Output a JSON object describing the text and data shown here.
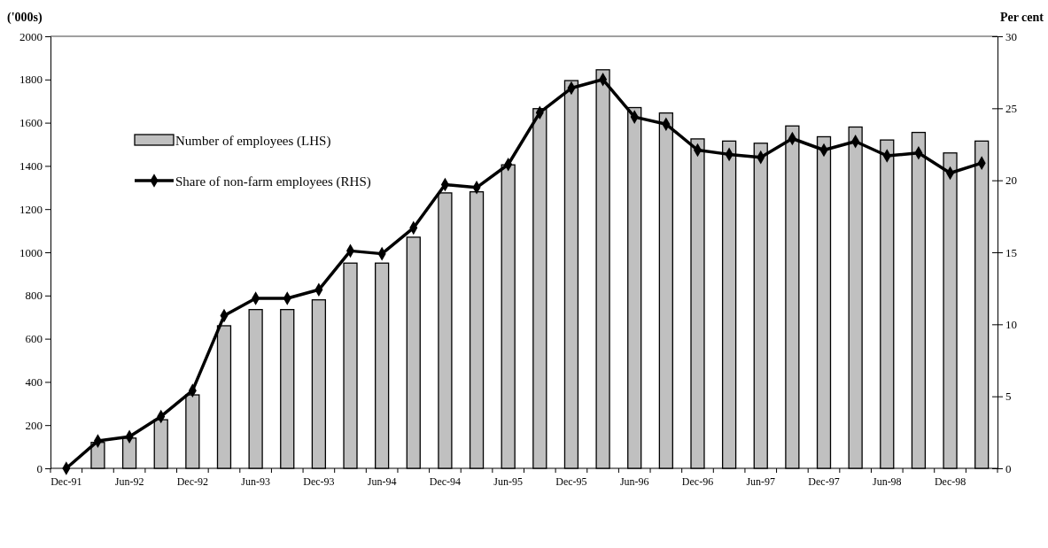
{
  "chart_data": {
    "type": "bar",
    "ylabel": "('000s)",
    "y2label": "Per cent",
    "categories": [
      "Dec-91",
      null,
      "Jun-92",
      null,
      "Dec-92",
      null,
      "Jun-93",
      null,
      "Dec-93",
      null,
      "Jun-94",
      null,
      "Dec-94",
      null,
      "Jun-95",
      null,
      "Dec-95",
      null,
      "Jun-96",
      null,
      "Dec-96",
      null,
      "Jun-97",
      null,
      "Dec-97",
      null,
      "Jun-98",
      null,
      "Dec-98",
      null
    ],
    "series": [
      {
        "name": "Number of employees (LHS)",
        "color": "#c0c0c0",
        "values": [
          0,
          120,
          140,
          225,
          340,
          660,
          735,
          735,
          780,
          950,
          950,
          1070,
          1275,
          1280,
          1405,
          1665,
          1795,
          1845,
          1670,
          1645,
          1525,
          1515,
          1505,
          1585,
          1535,
          1580,
          1520,
          1555,
          1460,
          1515
        ]
      },
      {
        "name": "Share of non-farm employees (RHS)",
        "type": "line",
        "axis": "y2",
        "color": "#000000",
        "marker": "diamond",
        "values": [
          0,
          1.9,
          2.2,
          3.6,
          5.4,
          10.6,
          11.8,
          11.8,
          12.4,
          15.1,
          14.9,
          16.7,
          19.7,
          19.5,
          21.1,
          24.7,
          26.4,
          27.0,
          24.4,
          23.9,
          22.1,
          21.8,
          21.6,
          22.9,
          22.1,
          22.7,
          21.7,
          21.9,
          20.5,
          21.2
        ]
      }
    ],
    "ylim": [
      0,
      2000
    ],
    "yticks": [
      0,
      200,
      400,
      600,
      800,
      1000,
      1200,
      1400,
      1600,
      1800,
      2000
    ],
    "y2lim": [
      0,
      30
    ],
    "y2ticks": [
      0,
      5,
      10,
      15,
      20,
      25,
      30
    ],
    "legend": "top left"
  }
}
